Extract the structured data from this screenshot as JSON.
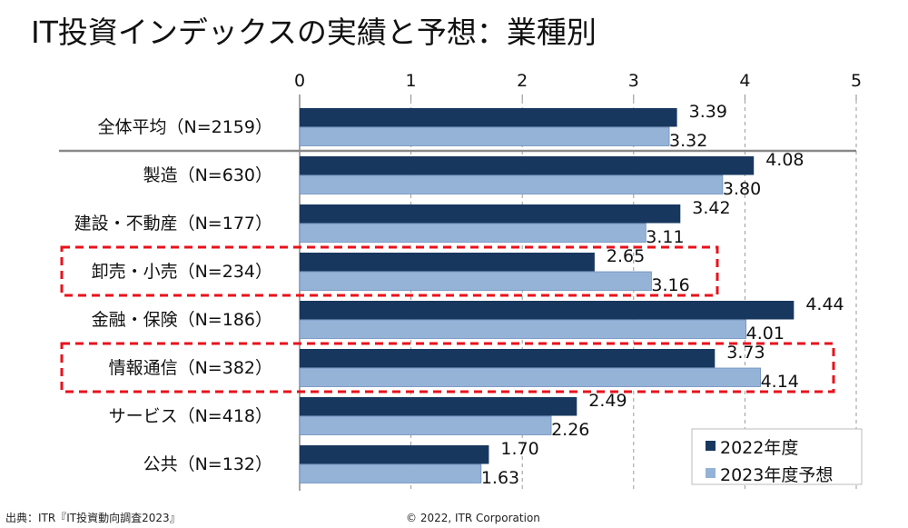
{
  "chart_data": {
    "type": "bar",
    "orientation": "horizontal",
    "title": "IT投資インデックスの実績と予想：業種別",
    "categories": [
      "全体平均（N=2159）",
      "製造（N=630）",
      "建設・不動産（N=177）",
      "卸売・小売（N=234）",
      "金融・保険（N=186）",
      "情報通信（N=382）",
      "サービス（N=418）",
      "公共（N=132）"
    ],
    "series": [
      {
        "name": "2022年度",
        "color": "#17375e",
        "values": [
          3.39,
          4.08,
          3.42,
          2.65,
          4.44,
          3.73,
          2.49,
          1.7
        ],
        "labels": [
          "3.39",
          "4.08",
          "3.42",
          "2.65",
          "4.44",
          "3.73",
          "2.49",
          "1.70"
        ]
      },
      {
        "name": "2023年度予想",
        "color": "#95b3d7",
        "values": [
          3.32,
          3.8,
          3.11,
          3.16,
          4.01,
          4.14,
          2.26,
          1.63
        ],
        "labels": [
          "3.32",
          "3.80",
          "3.11",
          "3.16",
          "4.01",
          "4.14",
          "2.26",
          "1.63"
        ]
      }
    ],
    "xlim": [
      0,
      5
    ],
    "xticks": [
      "0",
      "1",
      "2",
      "3",
      "4",
      "5"
    ],
    "xlabel": "",
    "ylabel": "",
    "grid": true,
    "legend_position": "bottom-right",
    "highlighted_categories": [
      3,
      5
    ],
    "highlight_color": "#e8121b"
  },
  "footer": {
    "source": "出典：ITR『IT投資動向調査2023』",
    "copyright": "© 2022, ITR Corporation"
  }
}
